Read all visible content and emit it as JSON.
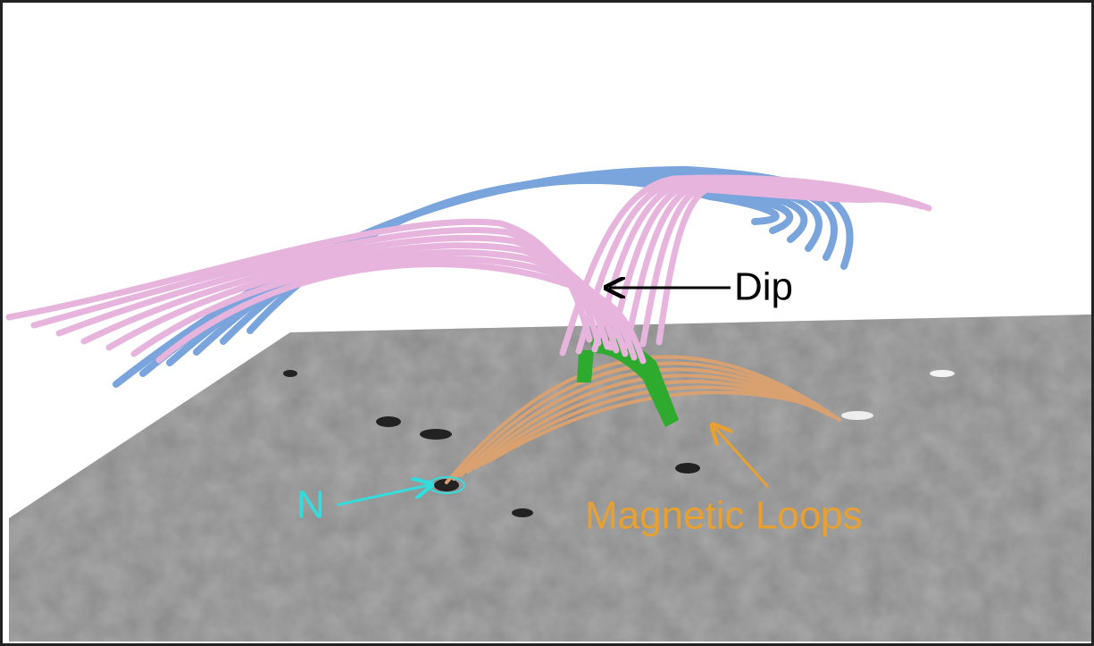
{
  "labels": {
    "dip": "Dip",
    "n": "N",
    "loops": "Magnetic Loops"
  }
}
